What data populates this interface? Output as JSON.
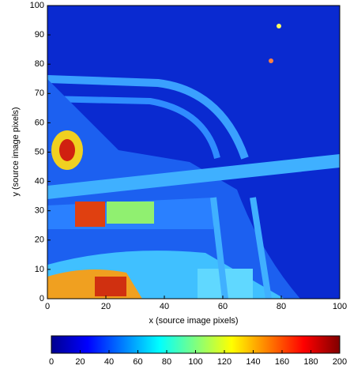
{
  "chart_data": {
    "type": "heatmap",
    "xlabel": "x (source image pixels)",
    "ylabel": "y (source image pixels)",
    "xlim": [
      0,
      100
    ],
    "ylim": [
      0,
      100
    ],
    "xticks": [
      0,
      20,
      40,
      60,
      80,
      100
    ],
    "yticks": [
      0,
      10,
      20,
      30,
      40,
      50,
      60,
      70,
      80,
      90,
      100
    ],
    "colorbar": {
      "lim": [
        0,
        200
      ],
      "ticks": [
        0,
        20,
        40,
        60,
        80,
        100,
        120,
        140,
        160,
        180,
        200
      ]
    }
  }
}
